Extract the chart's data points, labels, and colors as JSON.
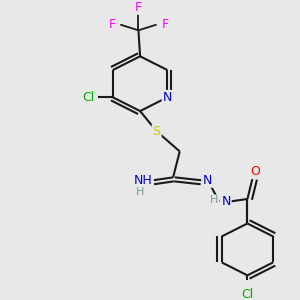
{
  "bg_color": "#e8e8e8",
  "bond_color": "#1a1a1a",
  "atom_colors": {
    "N": "#0000cd",
    "O": "#ff0000",
    "S": "#cccc00",
    "Cl": "#00aa00",
    "F": "#ff00ff",
    "C": "#1a1a1a",
    "H": "#7a9a9a"
  },
  "figsize": [
    3.0,
    3.0
  ],
  "dpi": 100
}
